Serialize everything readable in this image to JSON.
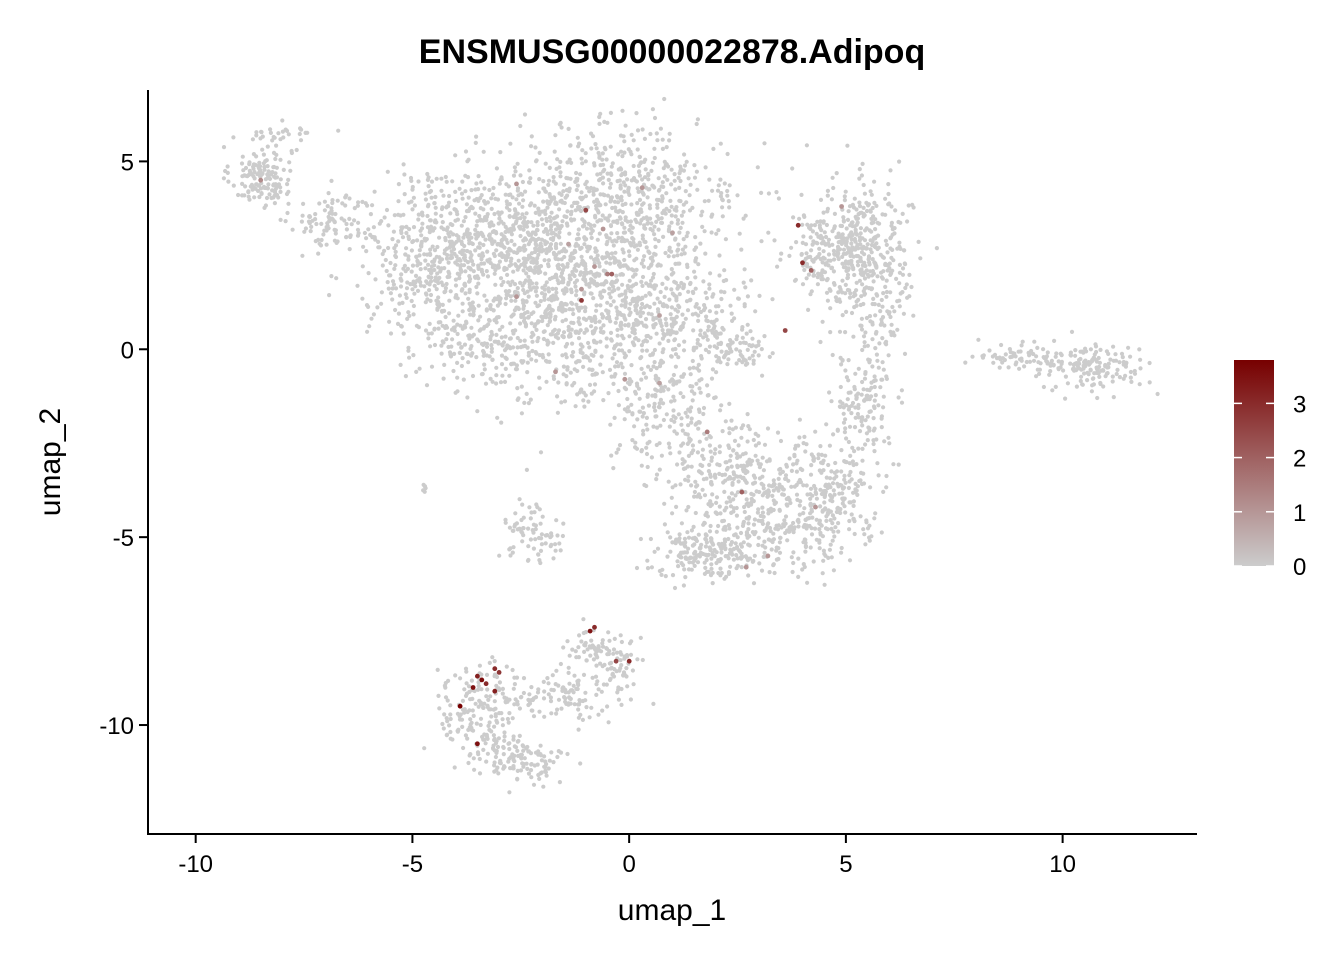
{
  "chart_data": {
    "type": "scatter",
    "title": "ENSMUSG00000022878.Adipoq",
    "xlabel": "umap_1",
    "ylabel": "umap_2",
    "xlim": [
      -11.1,
      13.1
    ],
    "ylim": [
      -12.9,
      6.9
    ],
    "x_ticks": [
      -10,
      -5,
      0,
      5,
      10
    ],
    "x_tick_labels": [
      "-10",
      "-5",
      "0",
      "5",
      "10"
    ],
    "y_ticks": [
      5,
      0,
      -5,
      -10
    ],
    "y_tick_labels": [
      "5",
      "0",
      "-5",
      "-10"
    ],
    "grid": false,
    "legend": {
      "type": "colorbar",
      "placement": "right",
      "ticks": [
        0,
        1,
        2,
        3
      ],
      "tick_labels": [
        "0",
        "1",
        "2",
        "3"
      ],
      "min": 0,
      "max": 3.8,
      "colors": [
        "#cccccc",
        "#770000"
      ]
    },
    "clusters": [
      {
        "cx": -8.5,
        "cy": 4.6,
        "sx": 0.35,
        "sy": 0.4,
        "n": 140
      },
      {
        "cx": -8.0,
        "cy": 5.7,
        "sx": 0.4,
        "sy": 0.15,
        "n": 30
      },
      {
        "cx": -6.8,
        "cy": 3.4,
        "sx": 0.5,
        "sy": 0.4,
        "n": 90
      },
      {
        "cx": -4.6,
        "cy": 2.2,
        "sx": 0.9,
        "sy": 0.9,
        "n": 260
      },
      {
        "cx": -3.6,
        "cy": 3.2,
        "sx": 1.1,
        "sy": 0.8,
        "n": 300
      },
      {
        "cx": -2.0,
        "cy": 2.8,
        "sx": 1.2,
        "sy": 1.1,
        "n": 520
      },
      {
        "cx": 0.0,
        "cy": 3.6,
        "sx": 1.3,
        "sy": 1.3,
        "n": 620
      },
      {
        "cx": -1.5,
        "cy": 0.5,
        "sx": 1.1,
        "sy": 1.0,
        "n": 480
      },
      {
        "cx": -3.4,
        "cy": 0.4,
        "sx": 0.8,
        "sy": 0.7,
        "n": 160
      },
      {
        "cx": 0.4,
        "cy": 1.0,
        "sx": 0.6,
        "sy": 0.8,
        "n": 160
      },
      {
        "cx": 1.8,
        "cy": 1.0,
        "sx": 0.7,
        "sy": 0.6,
        "n": 120
      },
      {
        "cx": 2.5,
        "cy": 0.0,
        "sx": 0.4,
        "sy": 0.3,
        "n": 60
      },
      {
        "cx": 0.8,
        "cy": -1.5,
        "sx": 0.6,
        "sy": 0.9,
        "n": 200
      },
      {
        "cx": 2.2,
        "cy": -3.0,
        "sx": 0.6,
        "sy": 0.6,
        "n": 140
      },
      {
        "cx": 3.2,
        "cy": -4.3,
        "sx": 1.0,
        "sy": 0.8,
        "n": 360
      },
      {
        "cx": 1.8,
        "cy": -5.4,
        "sx": 0.6,
        "sy": 0.35,
        "n": 170
      },
      {
        "cx": 4.7,
        "cy": -3.8,
        "sx": 0.6,
        "sy": 0.7,
        "n": 190
      },
      {
        "cx": 5.4,
        "cy": -1.4,
        "sx": 0.35,
        "sy": 0.8,
        "n": 130
      },
      {
        "cx": 5.4,
        "cy": 2.6,
        "sx": 0.55,
        "sy": 0.9,
        "n": 380
      },
      {
        "cx": 4.5,
        "cy": 2.5,
        "sx": 0.4,
        "sy": 0.6,
        "n": 120
      },
      {
        "cx": 5.8,
        "cy": 0.3,
        "sx": 0.2,
        "sy": 0.6,
        "n": 40
      },
      {
        "cx": 10.3,
        "cy": -0.4,
        "sx": 0.6,
        "sy": 0.3,
        "n": 110
      },
      {
        "cx": 9.0,
        "cy": -0.2,
        "sx": 0.5,
        "sy": 0.18,
        "n": 50
      },
      {
        "cx": 11.1,
        "cy": -0.6,
        "sx": 0.4,
        "sy": 0.3,
        "n": 60
      },
      {
        "cx": -2.4,
        "cy": -4.7,
        "sx": 0.25,
        "sy": 0.5,
        "n": 50
      },
      {
        "cx": -1.9,
        "cy": -5.1,
        "sx": 0.2,
        "sy": 0.3,
        "n": 25
      },
      {
        "cx": -4.7,
        "cy": -3.7,
        "sx": 0.05,
        "sy": 0.05,
        "n": 6
      },
      {
        "cx": -3.4,
        "cy": -9.6,
        "sx": 0.5,
        "sy": 0.6,
        "n": 170
      },
      {
        "cx": -2.6,
        "cy": -10.9,
        "sx": 0.5,
        "sy": 0.3,
        "n": 120
      },
      {
        "cx": -1.4,
        "cy": -9.2,
        "sx": 0.7,
        "sy": 0.35,
        "n": 110
      },
      {
        "cx": -0.7,
        "cy": -8.0,
        "sx": 0.4,
        "sy": 0.3,
        "n": 70
      },
      {
        "cx": -0.2,
        "cy": -8.5,
        "sx": 0.2,
        "sy": 0.25,
        "n": 30
      }
    ],
    "expressing_cells": [
      {
        "x": -8.5,
        "y": 4.5,
        "value": 1.2
      },
      {
        "x": -2.6,
        "y": 4.4,
        "value": 1.0
      },
      {
        "x": -1.0,
        "y": 3.7,
        "value": 2.5
      },
      {
        "x": -0.6,
        "y": 3.2,
        "value": 1.0
      },
      {
        "x": 0.3,
        "y": 4.3,
        "value": 1.0
      },
      {
        "x": -1.4,
        "y": 2.8,
        "value": 0.8
      },
      {
        "x": -0.8,
        "y": 2.2,
        "value": 1.0
      },
      {
        "x": -0.5,
        "y": 2.0,
        "value": 1.5
      },
      {
        "x": -0.4,
        "y": 2.0,
        "value": 2.0
      },
      {
        "x": -1.1,
        "y": 1.6,
        "value": 1.0
      },
      {
        "x": -1.1,
        "y": 1.3,
        "value": 2.8
      },
      {
        "x": -2.6,
        "y": 1.4,
        "value": 1.0
      },
      {
        "x": 0.7,
        "y": 0.9,
        "value": 0.8
      },
      {
        "x": 1.0,
        "y": 3.1,
        "value": 0.8
      },
      {
        "x": 3.9,
        "y": 3.3,
        "value": 3.0
      },
      {
        "x": 4.0,
        "y": 2.3,
        "value": 3.0
      },
      {
        "x": 4.2,
        "y": 2.1,
        "value": 2.0
      },
      {
        "x": 4.9,
        "y": 3.8,
        "value": 1.0
      },
      {
        "x": 3.6,
        "y": 0.5,
        "value": 2.5
      },
      {
        "x": -1.7,
        "y": -0.6,
        "value": 1.0
      },
      {
        "x": -0.1,
        "y": -0.8,
        "value": 1.0
      },
      {
        "x": 0.7,
        "y": -0.9,
        "value": 0.8
      },
      {
        "x": 1.8,
        "y": -2.2,
        "value": 1.5
      },
      {
        "x": 2.6,
        "y": -3.8,
        "value": 2.0
      },
      {
        "x": 4.3,
        "y": -4.2,
        "value": 1.0
      },
      {
        "x": 2.7,
        "y": -5.8,
        "value": 1.0
      },
      {
        "x": 3.2,
        "y": -5.5,
        "value": 1.0
      },
      {
        "x": -3.9,
        "y": -9.5,
        "value": 3.8
      },
      {
        "x": -3.6,
        "y": -9.0,
        "value": 3.5
      },
      {
        "x": -3.5,
        "y": -8.7,
        "value": 3.2
      },
      {
        "x": -3.4,
        "y": -8.8,
        "value": 3.6
      },
      {
        "x": -3.3,
        "y": -8.9,
        "value": 3.0
      },
      {
        "x": -3.1,
        "y": -8.5,
        "value": 3.0
      },
      {
        "x": -3.0,
        "y": -8.6,
        "value": 2.8
      },
      {
        "x": -3.1,
        "y": -9.1,
        "value": 3.2
      },
      {
        "x": -3.5,
        "y": -10.5,
        "value": 3.5
      },
      {
        "x": -0.9,
        "y": -7.5,
        "value": 3.4
      },
      {
        "x": -0.8,
        "y": -7.4,
        "value": 3.0
      },
      {
        "x": -0.3,
        "y": -8.3,
        "value": 2.5
      },
      {
        "x": 0.0,
        "y": -8.3,
        "value": 3.0
      }
    ]
  }
}
